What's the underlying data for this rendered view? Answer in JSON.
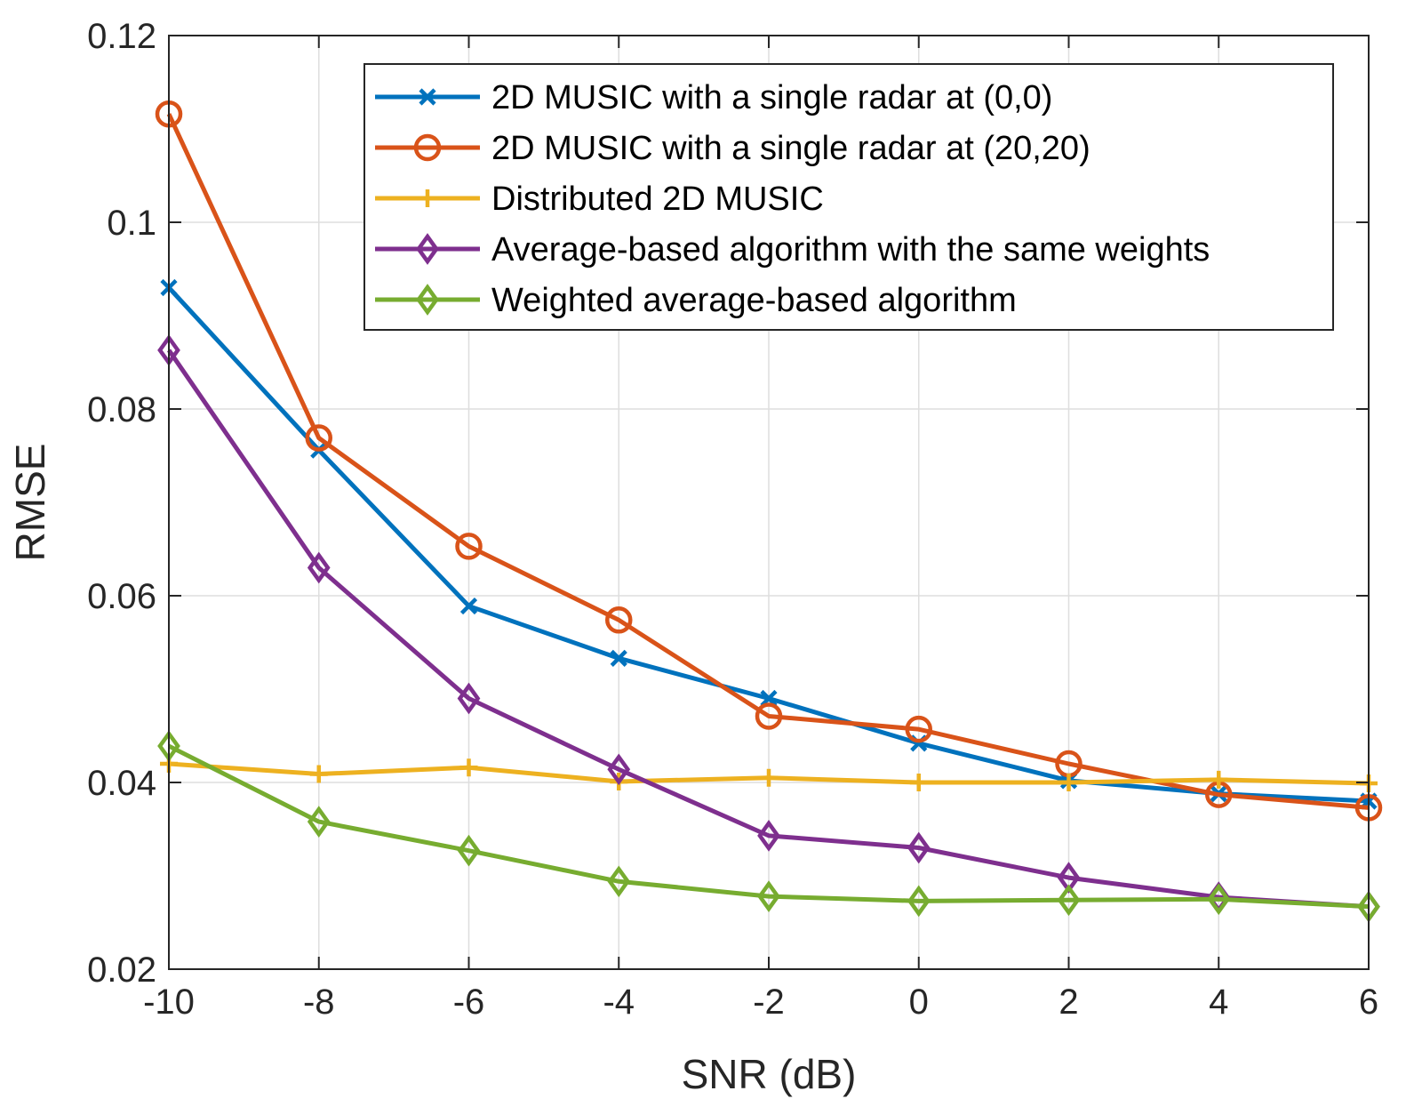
{
  "chart_data": {
    "type": "line",
    "xlabel": "SNR (dB)",
    "ylabel": "RMSE",
    "xlim": [
      -10,
      6
    ],
    "ylim": [
      0.02,
      0.12
    ],
    "xticks": [
      -10,
      -8,
      -6,
      -4,
      -2,
      0,
      2,
      4,
      6
    ],
    "yticks": [
      0.02,
      0.04,
      0.06,
      0.08,
      0.1,
      0.12
    ],
    "xtick_labels": [
      "-10",
      "-8",
      "-6",
      "-4",
      "-2",
      "0",
      "2",
      "4",
      "6"
    ],
    "ytick_labels": [
      "0.02",
      "0.04",
      "0.06",
      "0.08",
      "0.1",
      "0.12"
    ],
    "grid": true,
    "legend_position": "top-right",
    "x": [
      -10,
      -8,
      -6,
      -4,
      -2,
      0,
      2,
      4,
      6
    ],
    "series": [
      {
        "name": "2D MUSIC with a single radar at (0,0)",
        "color": "#0072BD",
        "marker": "x",
        "values": [
          0.093,
          0.0756,
          0.0589,
          0.0533,
          0.049,
          0.0442,
          0.0402,
          0.0388,
          0.038
        ]
      },
      {
        "name": "2D MUSIC with a single radar at (20,20)",
        "color": "#D95319",
        "marker": "circle",
        "values": [
          0.1116,
          0.0769,
          0.0653,
          0.0574,
          0.0471,
          0.0457,
          0.042,
          0.0387,
          0.0373
        ]
      },
      {
        "name": "Distributed 2D MUSIC",
        "color": "#EDB120",
        "marker": "plus",
        "values": [
          0.042,
          0.0409,
          0.0416,
          0.0401,
          0.0405,
          0.04,
          0.04,
          0.0403,
          0.0399
        ]
      },
      {
        "name": "Average-based algorithm with the same weights",
        "color": "#7E2F8E",
        "marker": "diamond",
        "values": [
          0.0863,
          0.063,
          0.049,
          0.0414,
          0.0343,
          0.033,
          0.0298,
          0.0277,
          0.0267
        ]
      },
      {
        "name": "Weighted average-based algorithm",
        "color": "#77AC30",
        "marker": "diamond",
        "values": [
          0.0439,
          0.0358,
          0.0327,
          0.0294,
          0.0278,
          0.0273,
          0.0274,
          0.0275,
          0.0267
        ]
      }
    ]
  }
}
